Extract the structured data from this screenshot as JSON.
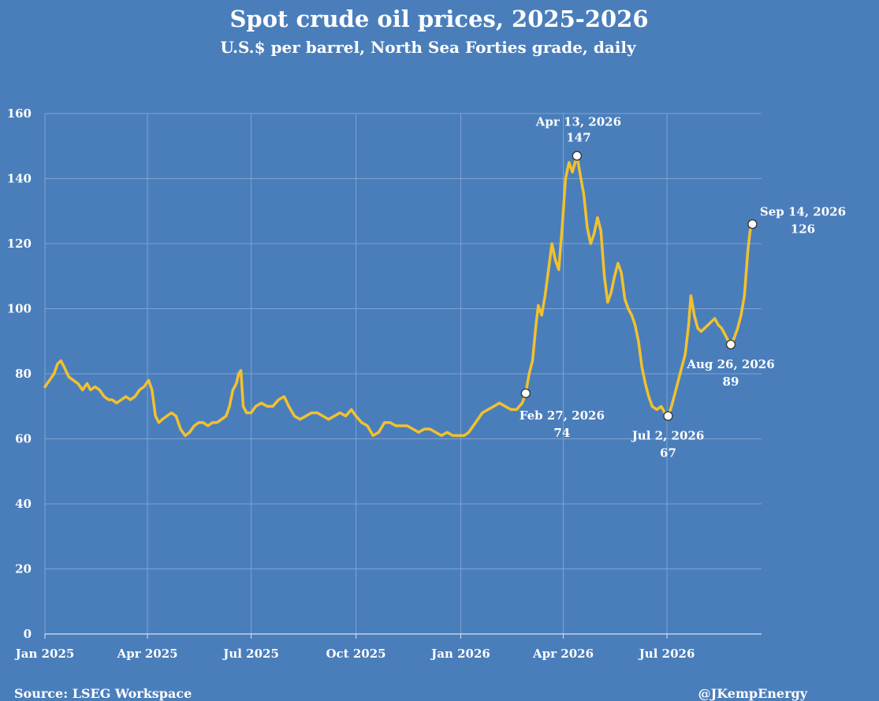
{
  "chart_data": {
    "type": "line",
    "title": "Spot crude oil prices, 2025-2026",
    "subtitle": "U.S.$ per barrel, North Sea Forties grade, daily",
    "ylim": [
      0,
      160
    ],
    "yticks": [
      0,
      20,
      40,
      60,
      80,
      100,
      120,
      140,
      160
    ],
    "grid": true,
    "x_range": [
      "2025-01-01",
      "2026-09-22"
    ],
    "xticks": [
      {
        "date": "2025-01-01",
        "label": "Jan 2025"
      },
      {
        "date": "2025-04-01",
        "label": "Apr 2025"
      },
      {
        "date": "2025-07-01",
        "label": "Jul 2025"
      },
      {
        "date": "2025-10-01",
        "label": "Oct 2025"
      },
      {
        "date": "2026-01-01",
        "label": "Jan 2026"
      },
      {
        "date": "2026-04-01",
        "label": "Apr 2026"
      },
      {
        "date": "2026-07-01",
        "label": "Jul 2026"
      }
    ],
    "line_color": "#f2c12e",
    "series": [
      {
        "points": [
          [
            "2025-01-01",
            76
          ],
          [
            "2025-01-05",
            78
          ],
          [
            "2025-01-09",
            80
          ],
          [
            "2025-01-12",
            83
          ],
          [
            "2025-01-15",
            84
          ],
          [
            "2025-01-18",
            82
          ],
          [
            "2025-01-22",
            79
          ],
          [
            "2025-01-26",
            78
          ],
          [
            "2025-01-30",
            77
          ],
          [
            "2025-02-03",
            75
          ],
          [
            "2025-02-07",
            77
          ],
          [
            "2025-02-10",
            75
          ],
          [
            "2025-02-14",
            76
          ],
          [
            "2025-02-18",
            75
          ],
          [
            "2025-02-22",
            73
          ],
          [
            "2025-02-26",
            72
          ],
          [
            "2025-03-01",
            72
          ],
          [
            "2025-03-05",
            71
          ],
          [
            "2025-03-09",
            72
          ],
          [
            "2025-03-13",
            73
          ],
          [
            "2025-03-17",
            72
          ],
          [
            "2025-03-21",
            73
          ],
          [
            "2025-03-25",
            75
          ],
          [
            "2025-03-29",
            76
          ],
          [
            "2025-04-02",
            78
          ],
          [
            "2025-04-05",
            75
          ],
          [
            "2025-04-08",
            67
          ],
          [
            "2025-04-11",
            65
          ],
          [
            "2025-04-14",
            66
          ],
          [
            "2025-04-18",
            67
          ],
          [
            "2025-04-22",
            68
          ],
          [
            "2025-04-26",
            67
          ],
          [
            "2025-04-30",
            63
          ],
          [
            "2025-05-04",
            61
          ],
          [
            "2025-05-08",
            62
          ],
          [
            "2025-05-12",
            64
          ],
          [
            "2025-05-16",
            65
          ],
          [
            "2025-05-20",
            65
          ],
          [
            "2025-05-24",
            64
          ],
          [
            "2025-05-28",
            65
          ],
          [
            "2025-06-01",
            65
          ],
          [
            "2025-06-05",
            66
          ],
          [
            "2025-06-09",
            67
          ],
          [
            "2025-06-12",
            70
          ],
          [
            "2025-06-15",
            75
          ],
          [
            "2025-06-18",
            77
          ],
          [
            "2025-06-20",
            80
          ],
          [
            "2025-06-22",
            81
          ],
          [
            "2025-06-24",
            70
          ],
          [
            "2025-06-27",
            68
          ],
          [
            "2025-07-01",
            68
          ],
          [
            "2025-07-05",
            70
          ],
          [
            "2025-07-10",
            71
          ],
          [
            "2025-07-15",
            70
          ],
          [
            "2025-07-20",
            70
          ],
          [
            "2025-07-25",
            72
          ],
          [
            "2025-07-30",
            73
          ],
          [
            "2025-08-03",
            70
          ],
          [
            "2025-08-08",
            67
          ],
          [
            "2025-08-13",
            66
          ],
          [
            "2025-08-18",
            67
          ],
          [
            "2025-08-23",
            68
          ],
          [
            "2025-08-28",
            68
          ],
          [
            "2025-09-02",
            67
          ],
          [
            "2025-09-07",
            66
          ],
          [
            "2025-09-12",
            67
          ],
          [
            "2025-09-17",
            68
          ],
          [
            "2025-09-22",
            67
          ],
          [
            "2025-09-27",
            69
          ],
          [
            "2025-10-01",
            67
          ],
          [
            "2025-10-06",
            65
          ],
          [
            "2025-10-11",
            64
          ],
          [
            "2025-10-16",
            61
          ],
          [
            "2025-10-21",
            62
          ],
          [
            "2025-10-26",
            65
          ],
          [
            "2025-10-31",
            65
          ],
          [
            "2025-11-05",
            64
          ],
          [
            "2025-11-10",
            64
          ],
          [
            "2025-11-15",
            64
          ],
          [
            "2025-11-20",
            63
          ],
          [
            "2025-11-25",
            62
          ],
          [
            "2025-11-30",
            63
          ],
          [
            "2025-12-05",
            63
          ],
          [
            "2025-12-10",
            62
          ],
          [
            "2025-12-15",
            61
          ],
          [
            "2025-12-20",
            62
          ],
          [
            "2025-12-25",
            61
          ],
          [
            "2025-12-30",
            61
          ],
          [
            "2026-01-04",
            61
          ],
          [
            "2026-01-08",
            62
          ],
          [
            "2026-01-12",
            64
          ],
          [
            "2026-01-16",
            66
          ],
          [
            "2026-01-20",
            68
          ],
          [
            "2026-01-25",
            69
          ],
          [
            "2026-01-30",
            70
          ],
          [
            "2026-02-04",
            71
          ],
          [
            "2026-02-09",
            70
          ],
          [
            "2026-02-14",
            69
          ],
          [
            "2026-02-19",
            69
          ],
          [
            "2026-02-24",
            71
          ],
          [
            "2026-02-27",
            74
          ],
          [
            "2026-03-02",
            80
          ],
          [
            "2026-03-05",
            84
          ],
          [
            "2026-03-08",
            95
          ],
          [
            "2026-03-10",
            101
          ],
          [
            "2026-03-13",
            98
          ],
          [
            "2026-03-16",
            104
          ],
          [
            "2026-03-19",
            112
          ],
          [
            "2026-03-22",
            120
          ],
          [
            "2026-03-25",
            115
          ],
          [
            "2026-03-28",
            112
          ],
          [
            "2026-03-31",
            125
          ],
          [
            "2026-04-03",
            140
          ],
          [
            "2026-04-06",
            145
          ],
          [
            "2026-04-09",
            142
          ],
          [
            "2026-04-13",
            147
          ],
          [
            "2026-04-16",
            141
          ],
          [
            "2026-04-19",
            135
          ],
          [
            "2026-04-22",
            125
          ],
          [
            "2026-04-25",
            120
          ],
          [
            "2026-04-28",
            123
          ],
          [
            "2026-05-01",
            128
          ],
          [
            "2026-05-04",
            124
          ],
          [
            "2026-05-07",
            110
          ],
          [
            "2026-05-10",
            102
          ],
          [
            "2026-05-13",
            105
          ],
          [
            "2026-05-16",
            110
          ],
          [
            "2026-05-19",
            114
          ],
          [
            "2026-05-22",
            111
          ],
          [
            "2026-05-25",
            103
          ],
          [
            "2026-05-28",
            100
          ],
          [
            "2026-05-31",
            98
          ],
          [
            "2026-06-03",
            95
          ],
          [
            "2026-06-06",
            90
          ],
          [
            "2026-06-09",
            82
          ],
          [
            "2026-06-12",
            77
          ],
          [
            "2026-06-15",
            73
          ],
          [
            "2026-06-18",
            70
          ],
          [
            "2026-06-22",
            69
          ],
          [
            "2026-06-26",
            70
          ],
          [
            "2026-06-29",
            68
          ],
          [
            "2026-07-02",
            67
          ],
          [
            "2026-07-05",
            70
          ],
          [
            "2026-07-08",
            74
          ],
          [
            "2026-07-11",
            78
          ],
          [
            "2026-07-14",
            82
          ],
          [
            "2026-07-17",
            86
          ],
          [
            "2026-07-20",
            95
          ],
          [
            "2026-07-22",
            104
          ],
          [
            "2026-07-25",
            98
          ],
          [
            "2026-07-28",
            94
          ],
          [
            "2026-07-31",
            93
          ],
          [
            "2026-08-03",
            94
          ],
          [
            "2026-08-06",
            95
          ],
          [
            "2026-08-09",
            96
          ],
          [
            "2026-08-12",
            97
          ],
          [
            "2026-08-15",
            95
          ],
          [
            "2026-08-18",
            94
          ],
          [
            "2026-08-21",
            92
          ],
          [
            "2026-08-24",
            90
          ],
          [
            "2026-08-26",
            89
          ],
          [
            "2026-08-29",
            91
          ],
          [
            "2026-09-01",
            94
          ],
          [
            "2026-09-04",
            98
          ],
          [
            "2026-09-07",
            104
          ],
          [
            "2026-09-10",
            118
          ],
          [
            "2026-09-12",
            124
          ],
          [
            "2026-09-14",
            126
          ]
        ]
      }
    ],
    "annotations": [
      {
        "date": "2026-02-27",
        "value": 74,
        "date_label": "Feb 27, 2026",
        "value_label": "74",
        "position": "below-right"
      },
      {
        "date": "2026-04-13",
        "value": 147,
        "date_label": "Apr 13, 2026",
        "value_label": "147",
        "position": "above"
      },
      {
        "date": "2026-07-02",
        "value": 67,
        "date_label": "Jul 2, 2026",
        "value_label": "67",
        "position": "below"
      },
      {
        "date": "2026-08-26",
        "value": 89,
        "date_label": "Aug 26, 2026",
        "value_label": "89",
        "position": "below"
      },
      {
        "date": "2026-09-14",
        "value": 126,
        "date_label": "Sep 14, 2026",
        "value_label": "126",
        "position": "right"
      }
    ]
  },
  "footer": {
    "source": "Source: LSEG Workspace",
    "handle": "@JKempEnergy"
  }
}
